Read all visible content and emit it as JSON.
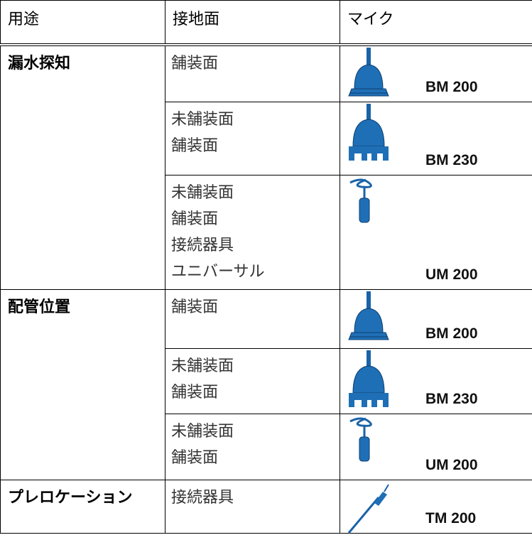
{
  "header": {
    "columns": [
      "用途",
      "接地面",
      "マイク"
    ]
  },
  "groups": [
    {
      "use": "漏水探知",
      "rows": [
        {
          "surfaces": [
            "舗装面"
          ],
          "mic": "BM 200"
        },
        {
          "surfaces": [
            "未舗装面",
            "舗装面"
          ],
          "mic": "BM 230"
        },
        {
          "surfaces": [
            "未舗装面",
            "舗装面",
            "接続器具",
            "ユニバーサル"
          ],
          "mic": "UM 200"
        }
      ]
    },
    {
      "use": "配管位置",
      "rows": [
        {
          "surfaces": [
            "舗装面"
          ],
          "mic": "BM 200"
        },
        {
          "surfaces": [
            "未舗装面",
            "舗装面"
          ],
          "mic": "BM 230"
        },
        {
          "surfaces": [
            "未舗装面",
            "舗装面"
          ],
          "mic": "UM 200"
        }
      ]
    },
    {
      "use": "プレロケーション",
      "rows": [
        {
          "surfaces": [
            "接続器具"
          ],
          "mic": "TM 200"
        }
      ]
    }
  ]
}
